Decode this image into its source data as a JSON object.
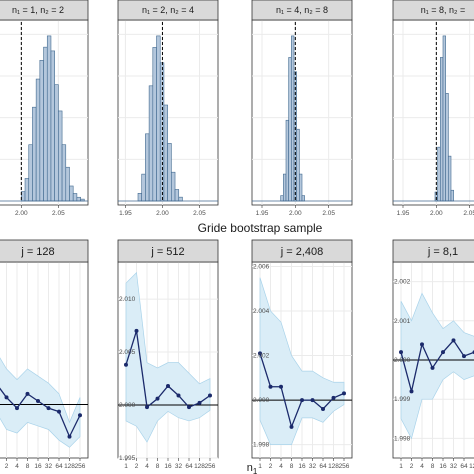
{
  "colors": {
    "strip_bg": "#d9d9d9",
    "strip_border": "#333333",
    "panel_bg": "#ffffff",
    "grid": "#ebebeb",
    "bar_fill": "#b4c7dc",
    "bar_stroke": "#41698f",
    "band_fill": "#daedf7",
    "band_stroke": "#a9d3ea",
    "line": "#1b2a6b",
    "ref_line": "#000000"
  },
  "figure": {
    "top_xlabel": "Gride bootstrap sample",
    "bottom_xlabel": "n"
  },
  "chart_data": [
    {
      "type": "bar",
      "strip": "n₁ = 1, n₂ = 2",
      "xlim": [
        1.955,
        2.09
      ],
      "x_ticks": [
        2.0,
        2.05
      ],
      "x_tick_labels": [
        "2.00",
        "2.05"
      ],
      "bin_start": 2.0,
      "bin_width": 0.005,
      "counts": [
        5,
        12,
        30,
        50,
        65,
        75,
        82,
        88,
        80,
        62,
        48,
        30,
        18,
        8,
        4,
        2,
        1
      ],
      "vline": 2.0
    },
    {
      "type": "bar",
      "strip": "n₁ = 2, n₂ = 4",
      "xlim": [
        1.94,
        2.075
      ],
      "x_ticks": [
        1.95,
        2.0,
        2.05
      ],
      "x_tick_labels": [
        "1.95",
        "2.00",
        "2.05"
      ],
      "bin_start": 1.967,
      "bin_width": 0.005,
      "counts": [
        4,
        14,
        35,
        60,
        80,
        86,
        72,
        50,
        30,
        15,
        6,
        2
      ],
      "vline": 2.0
    },
    {
      "type": "bar",
      "strip": "n₁ = 4, n₂ = 8",
      "xlim": [
        1.935,
        2.085
      ],
      "x_ticks": [
        1.95,
        2.0,
        2.05
      ],
      "x_tick_labels": [
        "1.95",
        "2.00",
        "2.05"
      ],
      "bin_start": 1.978,
      "bin_width": 0.004,
      "counts": [
        3,
        15,
        45,
        80,
        92,
        72,
        40,
        15,
        3
      ],
      "vline": 2.0
    },
    {
      "type": "bar",
      "strip": "n₁ = 8, n₂ =",
      "xlim": [
        1.935,
        2.085
      ],
      "x_ticks": [
        1.95,
        2.0,
        2.05
      ],
      "x_tick_labels": [
        "1.95",
        "2.00",
        "2.05"
      ],
      "bin_start": 1.998,
      "bin_width": 0.004,
      "counts": [
        5,
        30,
        80,
        92,
        60,
        25,
        6
      ],
      "vline": 2.0
    },
    {
      "type": "line",
      "strip": "j = 128",
      "x": [
        "1",
        "2",
        "4",
        "8",
        "16",
        "32",
        "64",
        "128",
        "256"
      ],
      "y": [
        2.06,
        2.02,
        1.99,
        2.03,
        2.01,
        1.99,
        1.98,
        1.91,
        1.97
      ],
      "lower": [
        1.98,
        1.93,
        1.92,
        1.95,
        1.94,
        1.93,
        1.9,
        1.88,
        1.91
      ],
      "upper": [
        2.15,
        2.1,
        2.07,
        2.1,
        2.08,
        2.06,
        2.03,
        1.95,
        2.02
      ],
      "ylim": [
        1.85,
        2.4
      ],
      "y_ticks": [],
      "hline": 2.0
    },
    {
      "type": "line",
      "strip": "j = 512",
      "x": [
        "1",
        "2",
        "4",
        "8",
        "16",
        "32",
        "64",
        "128",
        "256"
      ],
      "y": [
        2.0038,
        2.007,
        1.9998,
        2.0006,
        2.0018,
        2.0009,
        1.9998,
        2.0002,
        2.0009
      ],
      "lower": [
        1.9985,
        1.998,
        1.9965,
        1.9985,
        1.9994,
        1.9988,
        1.9985,
        1.9988,
        1.9995
      ],
      "upper": [
        2.0115,
        2.0125,
        2.004,
        2.0035,
        2.004,
        2.004,
        2.003,
        2.002,
        2.0025
      ],
      "ylim": [
        1.995,
        2.0135
      ],
      "y_ticks": [
        1.995,
        2.0,
        2.005,
        2.01
      ],
      "y_tick_labels": [
        "1.995",
        "2.000",
        "2.005",
        "2.010"
      ],
      "hline": 2.0
    },
    {
      "type": "line",
      "strip": "j = 2,408",
      "x": [
        "1",
        "2",
        "4",
        "8",
        "16",
        "32",
        "64",
        "128",
        "256"
      ],
      "y": [
        2.0021,
        2.0006,
        2.0006,
        1.9988,
        2.0,
        2.0,
        1.9996,
        2.0001,
        2.0003
      ],
      "lower": [
        1.9991,
        1.998,
        1.998,
        1.998,
        1.9992,
        1.9992,
        1.999,
        1.9995,
        1.9998
      ],
      "upper": [
        2.0055,
        2.004,
        2.0035,
        2.002,
        2.0013,
        2.0013,
        2.001,
        2.0008,
        2.0008
      ],
      "ylim": [
        1.9974,
        2.0062
      ],
      "y_ticks": [
        1.998,
        2.0,
        2.002,
        2.004,
        2.006
      ],
      "y_tick_labels": [
        "1.998",
        "2.000",
        "2.002",
        "2.004",
        "2.006"
      ],
      "hline": 2.0
    },
    {
      "type": "line",
      "strip": "j = 8,1",
      "x": [
        "1",
        "2",
        "4",
        "8",
        "16",
        "32",
        "64",
        "128",
        "256"
      ],
      "y": [
        2.0002,
        1.9992,
        2.0004,
        1.9998,
        2.0002,
        2.0005,
        2.0001,
        2.0002,
        2.0003
      ],
      "lower": [
        1.9985,
        1.998,
        1.999,
        1.999,
        1.9995,
        1.9997,
        1.9995,
        1.9996,
        1.9998
      ],
      "upper": [
        2.0015,
        2.001,
        2.0017,
        2.0012,
        2.0008,
        2.001,
        2.0007,
        2.0006,
        2.0007
      ],
      "ylim": [
        1.9975,
        2.0025
      ],
      "y_ticks": [
        1.998,
        1.999,
        2.0,
        2.001,
        2.002
      ],
      "y_tick_labels": [
        "1.998",
        "1.999",
        "2.000",
        "2.001",
        "2.002"
      ],
      "hline": 2.0
    }
  ]
}
